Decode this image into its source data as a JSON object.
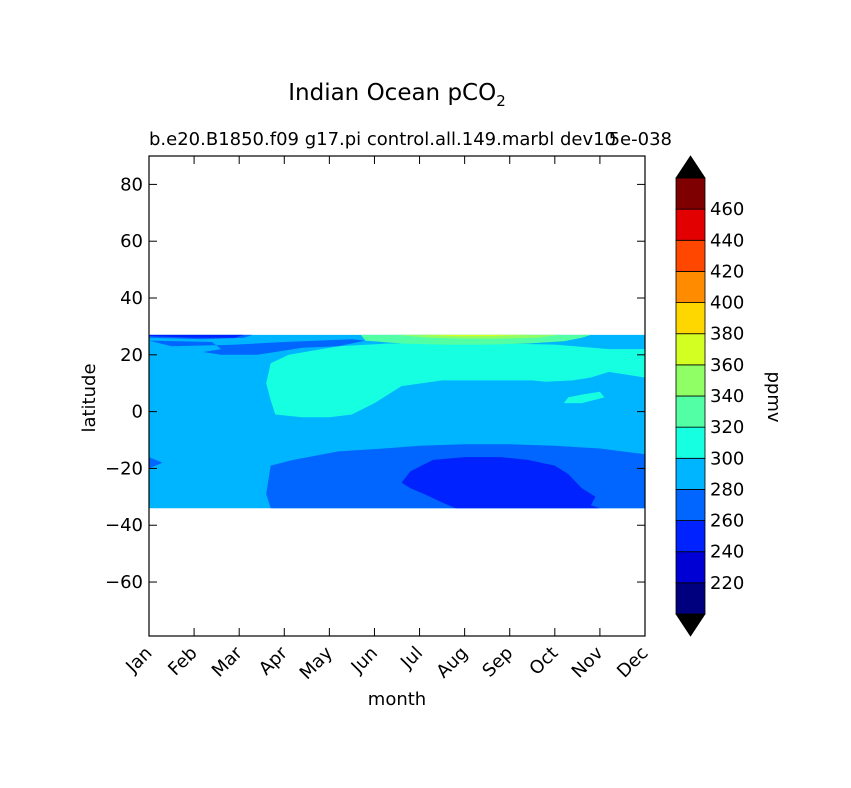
{
  "chart_data": {
    "type": "heatmap",
    "plot_kind": "filled-contour",
    "title": "Indian Ocean pCO",
    "title_subscript": "2",
    "subtitle": "b.e20.B1850.f09 g17.pi control.all.149.marbl dev10",
    "subtitle_overlap": "5e-038",
    "xlabel": "month",
    "ylabel": "latitude",
    "x_categories": [
      "Jan",
      "Feb",
      "Mar",
      "Apr",
      "May",
      "Jun",
      "Jul",
      "Aug",
      "Sep",
      "Oct",
      "Nov",
      "Dec"
    ],
    "y_ticks": [
      80,
      60,
      40,
      20,
      0,
      -20,
      -40,
      -60
    ],
    "y_tick_labels": [
      "80",
      "60",
      "40",
      "20",
      "0",
      "−20",
      "−40",
      "−60"
    ],
    "ylim": [
      -79,
      90
    ],
    "data_lat_range": [
      -34,
      27
    ],
    "colorbar": {
      "label": "ppmv",
      "levels": [
        200,
        220,
        240,
        260,
        280,
        300,
        320,
        340,
        360,
        380,
        400,
        420,
        440,
        460,
        480
      ],
      "tick_values": [
        220,
        240,
        260,
        280,
        300,
        320,
        340,
        360,
        380,
        400,
        420,
        440,
        460
      ],
      "colors": [
        "#00007f",
        "#0000d4",
        "#0022ff",
        "#0066ff",
        "#00b5ff",
        "#16ffe1",
        "#53ffa4",
        "#90ff66",
        "#d4ff22",
        "#ffd700",
        "#ff8c00",
        "#ff4700",
        "#e30000",
        "#7f0000"
      ],
      "extend": "both",
      "extend_color": "#000000"
    },
    "regions": [
      {
        "level_index": 4,
        "label": "280-300 ppmv",
        "outline": [
          [
            0,
            27
          ],
          [
            11,
            27
          ],
          [
            11,
            -34
          ],
          [
            0,
            -34
          ]
        ]
      },
      {
        "level_index": 5,
        "label": "300-320 ppmv",
        "outline": [
          [
            2.7,
            17
          ],
          [
            3.1,
            20
          ],
          [
            4.2,
            23
          ],
          [
            5.3,
            24
          ],
          [
            6.5,
            24
          ],
          [
            7.8,
            24
          ],
          [
            9,
            23.6
          ],
          [
            10.2,
            22
          ],
          [
            11,
            22
          ],
          [
            11,
            12
          ],
          [
            10.2,
            14
          ],
          [
            9.8,
            12
          ],
          [
            9.4,
            11
          ],
          [
            8.8,
            10.5
          ],
          [
            8.5,
            11
          ],
          [
            7.5,
            11
          ],
          [
            6.5,
            11
          ],
          [
            5.6,
            9
          ],
          [
            5,
            3
          ],
          [
            4.5,
            -1
          ],
          [
            4,
            -2
          ],
          [
            3.4,
            -2
          ],
          [
            2.8,
            -1
          ],
          [
            2.7,
            4
          ],
          [
            2.6,
            10
          ]
        ]
      },
      {
        "level_index": 5,
        "label": "300-320 ppmv",
        "outline": [
          [
            9.6,
            6
          ],
          [
            10,
            7
          ],
          [
            10.1,
            5
          ],
          [
            9.6,
            3
          ],
          [
            9.2,
            3
          ],
          [
            9.3,
            5
          ]
        ]
      },
      {
        "level_index": 6,
        "label": "320-340 ppmv",
        "outline": [
          [
            4.7,
            27
          ],
          [
            4.8,
            25
          ],
          [
            5.6,
            24
          ],
          [
            6.5,
            23.6
          ],
          [
            7.5,
            23.6
          ],
          [
            8.4,
            24
          ],
          [
            9.2,
            24.8
          ],
          [
            9.6,
            26
          ],
          [
            9.8,
            27
          ]
        ]
      },
      {
        "level_index": 7,
        "label": "340-360 ppmv",
        "outline": [
          [
            5.5,
            27
          ],
          [
            6.2,
            26
          ],
          [
            7,
            25.7
          ],
          [
            7.8,
            25.7
          ],
          [
            8.6,
            26
          ],
          [
            9.1,
            27
          ]
        ]
      },
      {
        "level_index": 8,
        "label": "360-380 ppmv",
        "outline": [
          [
            6,
            27
          ],
          [
            6.8,
            26.6
          ],
          [
            7.6,
            26.6
          ],
          [
            8.4,
            27
          ]
        ]
      },
      {
        "level_index": 3,
        "label": "260-280 ppmv",
        "outline": [
          [
            2.7,
            -34
          ],
          [
            2.6,
            -29
          ],
          [
            2.7,
            -19
          ],
          [
            3.2,
            -17
          ],
          [
            4.2,
            -14
          ],
          [
            5.2,
            -13
          ],
          [
            6,
            -12
          ],
          [
            7,
            -11.5
          ],
          [
            8,
            -11.5
          ],
          [
            9,
            -12
          ],
          [
            10,
            -13
          ],
          [
            11,
            -15
          ],
          [
            11,
            -34
          ]
        ]
      },
      {
        "level_index": 3,
        "label": "260-280 ppmv",
        "outline": [
          [
            0,
            -16
          ],
          [
            0.3,
            -18
          ],
          [
            0,
            -20
          ]
        ]
      },
      {
        "level_index": 2,
        "label": "240-260 ppmv",
        "outline": [
          [
            5.6,
            -25
          ],
          [
            5.8,
            -27
          ],
          [
            6.1,
            -29
          ],
          [
            6.5,
            -32
          ],
          [
            6.8,
            -34
          ],
          [
            10,
            -34
          ],
          [
            9.8,
            -33
          ],
          [
            9.9,
            -30
          ],
          [
            9.6,
            -27
          ],
          [
            9.3,
            -22
          ],
          [
            9,
            -19
          ],
          [
            8.4,
            -17
          ],
          [
            7.8,
            -16
          ],
          [
            7,
            -16
          ],
          [
            6.3,
            -17
          ],
          [
            5.8,
            -21
          ]
        ]
      },
      {
        "level_index": 3,
        "label": "260-280 ppmv",
        "outline": [
          [
            0,
            27
          ],
          [
            2.3,
            27
          ],
          [
            2.1,
            26
          ],
          [
            1.2,
            25.5
          ],
          [
            0,
            26
          ]
        ]
      },
      {
        "level_index": 2,
        "label": "240-260 ppmv",
        "outline": [
          [
            0,
            27
          ],
          [
            2.1,
            27
          ],
          [
            1.9,
            26
          ],
          [
            1,
            26
          ],
          [
            0,
            26.6
          ]
        ]
      },
      {
        "level_index": 3,
        "label": "260-280 ppmv",
        "outline": [
          [
            0,
            25
          ],
          [
            1.4,
            24.5
          ],
          [
            1.6,
            22
          ],
          [
            1.2,
            21
          ],
          [
            1.6,
            20
          ],
          [
            2.4,
            20
          ],
          [
            2.8,
            21
          ],
          [
            3.4,
            22.5
          ],
          [
            4.2,
            23
          ],
          [
            4.8,
            25
          ],
          [
            4.5,
            25.5
          ],
          [
            3,
            24.5
          ],
          [
            1.8,
            23.5
          ],
          [
            0.5,
            23
          ]
        ]
      }
    ]
  }
}
